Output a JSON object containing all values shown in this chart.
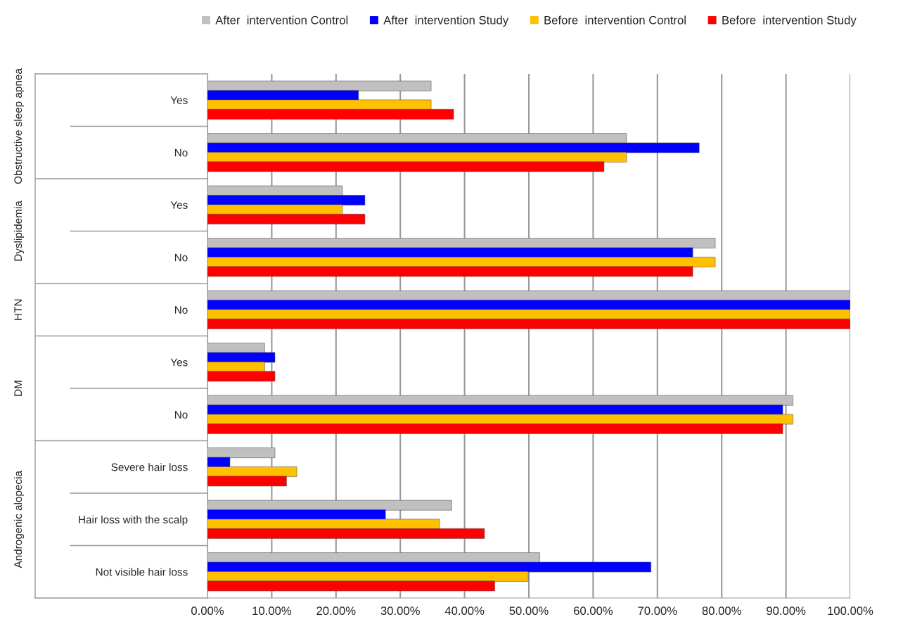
{
  "chart_data": {
    "type": "bar",
    "orientation": "horizontal",
    "categories": [
      "Yes",
      "No",
      "Yes",
      "No",
      "No",
      "Yes",
      "No",
      "Severe hair loss",
      "Hair loss with the scalp",
      "Not visible hair loss"
    ],
    "annotations": [
      "Obstructive sleep apnea",
      "Dyslipidemia",
      "HTN",
      "DM",
      "Androgenic alopecia"
    ],
    "series": [
      {
        "name": "After  intervention Control",
        "color": "#c0c0c0",
        "values": [
          34.8,
          65.2,
          21.0,
          79.0,
          100,
          8.9,
          91.1,
          10.5,
          38.0,
          51.7
        ]
      },
      {
        "name": "After  intervention Study",
        "color": "#0000ff",
        "values": [
          23.5,
          76.5,
          24.5,
          75.5,
          100,
          10.5,
          89.5,
          3.5,
          27.7,
          69.0
        ]
      },
      {
        "name": "Before  intervention Control",
        "color": "#ffc000",
        "values": [
          34.8,
          65.2,
          21.0,
          79.0,
          100,
          8.9,
          91.1,
          13.9,
          36.1,
          49.9
        ]
      },
      {
        "name": "Before  intervention Study",
        "color": "#ff0000",
        "values": [
          38.3,
          61.7,
          24.5,
          75.5,
          100,
          10.5,
          89.5,
          12.3,
          43.1,
          44.7
        ]
      }
    ],
    "xlim": [
      0,
      100
    ],
    "xticks": [
      {
        "value": 0,
        "label": "0.00%"
      },
      {
        "value": 10,
        "label": "10.00%"
      },
      {
        "value": 20,
        "label": "20.00%"
      },
      {
        "value": 30,
        "label": "30.00%"
      },
      {
        "value": 40,
        "label": "40.00%"
      },
      {
        "value": 50,
        "label": "50.00%"
      },
      {
        "value": 60,
        "label": "60.00%"
      },
      {
        "value": 70,
        "label": "70.00%"
      },
      {
        "value": 80,
        "label": "80.00%"
      },
      {
        "value": 90,
        "label": "90.00%"
      },
      {
        "value": 100,
        "label": "100.00%"
      }
    ],
    "grid": "x",
    "legend": "top"
  }
}
